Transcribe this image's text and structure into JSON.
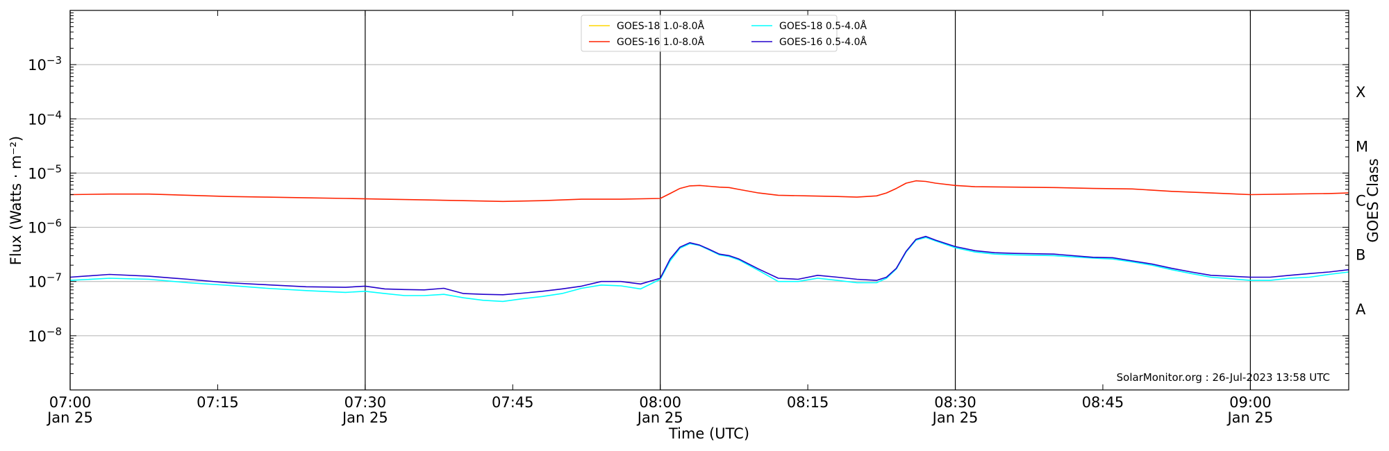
{
  "chart_data": {
    "type": "line",
    "xlabel": "Time (UTC)",
    "ylabel": "Flux (Watts · m⁻²)",
    "y2label": "GOES Class",
    "yscale": "log",
    "ylim": [
      1e-09,
      0.01
    ],
    "xlim": [
      "07:00",
      "09:10"
    ],
    "grid": "horizontal",
    "legend_position": "top-center",
    "watermark": "SolarMonitor.org : 26-Jul-2023 13:58 UTC",
    "y_ticks": [
      {
        "value": 1e-08,
        "base": "10",
        "exp": "−8"
      },
      {
        "value": 1e-07,
        "base": "10",
        "exp": "−7"
      },
      {
        "value": 1e-06,
        "base": "10",
        "exp": "−6"
      },
      {
        "value": 1e-05,
        "base": "10",
        "exp": "−5"
      },
      {
        "value": 0.0001,
        "base": "10",
        "exp": "−4"
      },
      {
        "value": 0.001,
        "base": "10",
        "exp": "−3"
      }
    ],
    "x_ticks": [
      {
        "time": "07:00",
        "label": "07:00",
        "date": "Jan 25"
      },
      {
        "time": "07:15",
        "label": "07:15",
        "date": ""
      },
      {
        "time": "07:30",
        "label": "07:30",
        "date": "Jan 25"
      },
      {
        "time": "07:45",
        "label": "07:45",
        "date": ""
      },
      {
        "time": "08:00",
        "label": "08:00",
        "date": "Jan 25"
      },
      {
        "time": "08:15",
        "label": "08:15",
        "date": ""
      },
      {
        "time": "08:30",
        "label": "08:30",
        "date": "Jan 25"
      },
      {
        "time": "08:45",
        "label": "08:45",
        "date": ""
      },
      {
        "time": "09:00",
        "label": "09:00",
        "date": "Jan 25"
      }
    ],
    "vlines": [
      "07:00",
      "07:30",
      "08:00",
      "08:30",
      "09:00"
    ],
    "goes_classes": [
      {
        "label": "A",
        "value": 3.16e-08
      },
      {
        "label": "B",
        "value": 3.16e-07
      },
      {
        "label": "C",
        "value": 3.16e-06
      },
      {
        "label": "M",
        "value": 3.16e-05
      },
      {
        "label": "X",
        "value": 0.000316
      }
    ],
    "legend": [
      {
        "name": "GOES-18 1.0-8.0Å",
        "color": "#ffd700"
      },
      {
        "name": "GOES-16 1.0-8.0Å",
        "color": "#ff2200"
      },
      {
        "name": "GOES-18 0.5-4.0Å",
        "color": "#00ffff"
      },
      {
        "name": "GOES-16 0.5-4.0Å",
        "color": "#2200cc"
      }
    ],
    "series": [
      {
        "name": "GOES-16 1.0-8.0Å",
        "color": "#ff2200",
        "x": [
          "07:00",
          "07:04",
          "07:08",
          "07:12",
          "07:16",
          "07:20",
          "07:24",
          "07:28",
          "07:32",
          "07:36",
          "07:40",
          "07:44",
          "07:48",
          "07:52",
          "07:56",
          "08:00",
          "08:01",
          "08:02",
          "08:03",
          "08:04",
          "08:05",
          "08:06",
          "08:07",
          "08:08",
          "08:10",
          "08:12",
          "08:15",
          "08:18",
          "08:20",
          "08:22",
          "08:23",
          "08:24",
          "08:25",
          "08:26",
          "08:27",
          "08:28",
          "08:30",
          "08:32",
          "08:36",
          "08:40",
          "08:44",
          "08:48",
          "08:52",
          "08:56",
          "09:00",
          "09:04",
          "09:08",
          "09:10"
        ],
        "y": [
          4e-06,
          4.1e-06,
          4.1e-06,
          3.9e-06,
          3.7e-06,
          3.6e-06,
          3.5e-06,
          3.4e-06,
          3.3e-06,
          3.2e-06,
          3.1e-06,
          3e-06,
          3.1e-06,
          3.3e-06,
          3.3e-06,
          3.4e-06,
          4.2e-06,
          5.2e-06,
          5.8e-06,
          5.9e-06,
          5.7e-06,
          5.5e-06,
          5.4e-06,
          5e-06,
          4.3e-06,
          3.9e-06,
          3.8e-06,
          3.7e-06,
          3.6e-06,
          3.8e-06,
          4.3e-06,
          5.2e-06,
          6.5e-06,
          7.2e-06,
          7e-06,
          6.5e-06,
          5.9e-06,
          5.6e-06,
          5.5e-06,
          5.4e-06,
          5.2e-06,
          5.1e-06,
          4.6e-06,
          4.3e-06,
          4e-06,
          4.1e-06,
          4.2e-06,
          4.3e-06
        ]
      },
      {
        "name": "GOES-18 0.5-4.0Å",
        "color": "#00ffff",
        "x": [
          "07:00",
          "07:04",
          "07:08",
          "07:12",
          "07:16",
          "07:20",
          "07:24",
          "07:28",
          "07:30",
          "07:32",
          "07:34",
          "07:36",
          "07:38",
          "07:40",
          "07:42",
          "07:44",
          "07:46",
          "07:48",
          "07:50",
          "07:52",
          "07:54",
          "07:56",
          "07:58",
          "08:00",
          "08:01",
          "08:02",
          "08:03",
          "08:04",
          "08:05",
          "08:06",
          "08:07",
          "08:08",
          "08:10",
          "08:12",
          "08:14",
          "08:16",
          "08:18",
          "08:20",
          "08:22",
          "08:23",
          "08:24",
          "08:25",
          "08:26",
          "08:27",
          "08:28",
          "08:30",
          "08:32",
          "08:34",
          "08:36",
          "08:40",
          "08:44",
          "08:46",
          "08:48",
          "08:50",
          "08:52",
          "08:54",
          "08:56",
          "09:00",
          "09:02",
          "09:04",
          "09:06",
          "09:08",
          "09:10"
        ],
        "y": [
          1.05e-07,
          1.15e-07,
          1.1e-07,
          9.5e-08,
          8.5e-08,
          7.5e-08,
          6.8e-08,
          6.3e-08,
          6.6e-08,
          6e-08,
          5.5e-08,
          5.5e-08,
          5.8e-08,
          5e-08,
          4.5e-08,
          4.3e-08,
          4.8e-08,
          5.3e-08,
          6e-08,
          7.5e-08,
          8.6e-08,
          8.3e-08,
          7.3e-08,
          1.1e-07,
          2.4e-07,
          4.1e-07,
          5e-07,
          4.6e-07,
          3.8e-07,
          3.1e-07,
          2.9e-07,
          2.5e-07,
          1.6e-07,
          1e-07,
          1e-07,
          1.15e-07,
          1.05e-07,
          9.5e-08,
          9.5e-08,
          1.15e-07,
          1.7e-07,
          3.5e-07,
          5.8e-07,
          6.5e-07,
          5.6e-07,
          4.2e-07,
          3.5e-07,
          3.2e-07,
          3.1e-07,
          3e-07,
          2.7e-07,
          2.6e-07,
          2.3e-07,
          2e-07,
          1.65e-07,
          1.4e-07,
          1.2e-07,
          1.05e-07,
          1.05e-07,
          1.15e-07,
          1.2e-07,
          1.35e-07,
          1.5e-07
        ]
      },
      {
        "name": "GOES-16 0.5-4.0Å",
        "color": "#2200cc",
        "x": [
          "07:00",
          "07:04",
          "07:08",
          "07:12",
          "07:16",
          "07:20",
          "07:24",
          "07:28",
          "07:30",
          "07:32",
          "07:34",
          "07:36",
          "07:38",
          "07:40",
          "07:42",
          "07:44",
          "07:46",
          "07:48",
          "07:50",
          "07:52",
          "07:54",
          "07:56",
          "07:58",
          "08:00",
          "08:01",
          "08:02",
          "08:03",
          "08:04",
          "08:05",
          "08:06",
          "08:07",
          "08:08",
          "08:10",
          "08:12",
          "08:14",
          "08:16",
          "08:18",
          "08:20",
          "08:22",
          "08:23",
          "08:24",
          "08:25",
          "08:26",
          "08:27",
          "08:28",
          "08:30",
          "08:32",
          "08:34",
          "08:36",
          "08:40",
          "08:44",
          "08:46",
          "08:48",
          "08:50",
          "08:52",
          "08:54",
          "08:56",
          "09:00",
          "09:02",
          "09:04",
          "09:06",
          "09:08",
          "09:10"
        ],
        "y": [
          1.2e-07,
          1.35e-07,
          1.25e-07,
          1.1e-07,
          9.5e-08,
          8.7e-08,
          8e-08,
          7.8e-08,
          8.2e-08,
          7.3e-08,
          7.1e-08,
          7e-08,
          7.5e-08,
          6e-08,
          5.8e-08,
          5.7e-08,
          6.1e-08,
          6.6e-08,
          7.3e-08,
          8.2e-08,
          1e-07,
          1e-07,
          9e-08,
          1.15e-07,
          2.6e-07,
          4.3e-07,
          5.2e-07,
          4.7e-07,
          3.9e-07,
          3.2e-07,
          3e-07,
          2.6e-07,
          1.7e-07,
          1.15e-07,
          1.1e-07,
          1.3e-07,
          1.2e-07,
          1.1e-07,
          1.05e-07,
          1.2e-07,
          1.75e-07,
          3.6e-07,
          6e-07,
          6.8e-07,
          5.8e-07,
          4.4e-07,
          3.7e-07,
          3.4e-07,
          3.3e-07,
          3.2e-07,
          2.8e-07,
          2.75e-07,
          2.4e-07,
          2.1e-07,
          1.75e-07,
          1.5e-07,
          1.3e-07,
          1.2e-07,
          1.2e-07,
          1.3e-07,
          1.4e-07,
          1.5e-07,
          1.65e-07
        ]
      }
    ]
  }
}
